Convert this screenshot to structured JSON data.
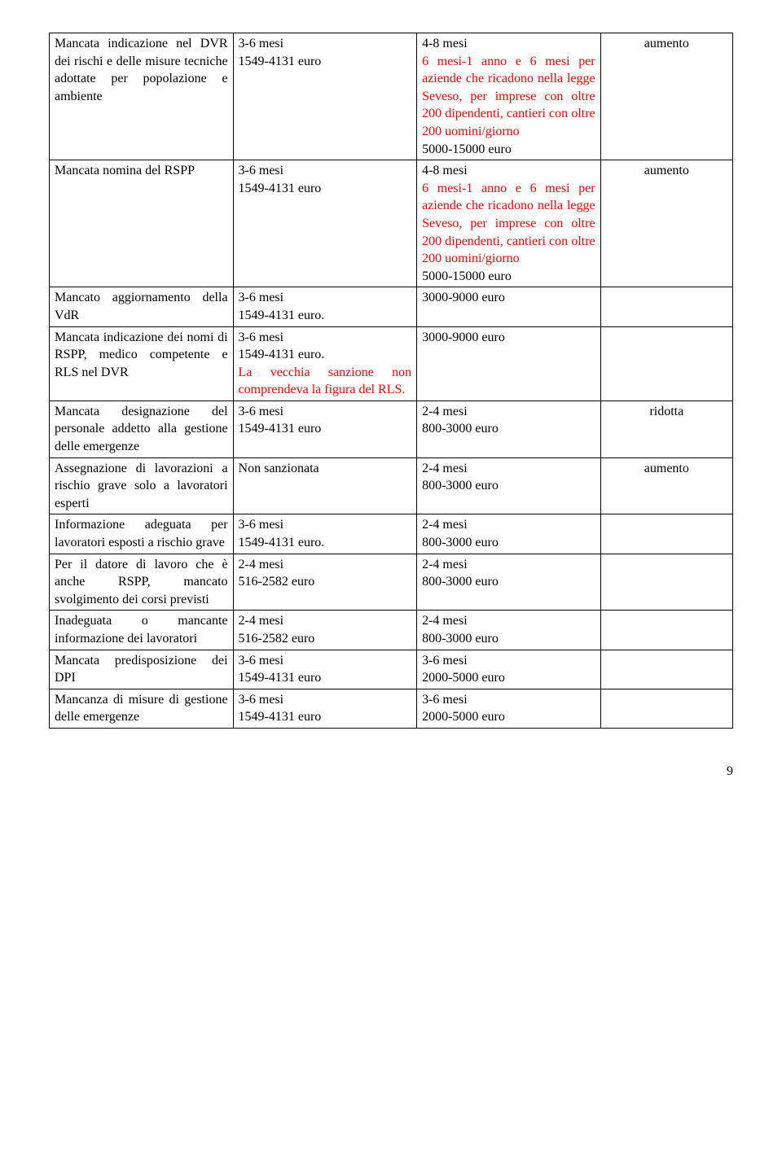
{
  "rows": [
    {
      "c1": [
        {
          "t": "Mancata indicazione nel DVR dei rischi e delle misure tecniche adottate per popolazione e ambiente",
          "red": false
        }
      ],
      "c2": [
        {
          "t": "3-6 mesi",
          "red": false
        },
        {
          "t": "1549-4131 euro",
          "red": false
        }
      ],
      "c3": [
        {
          "t": "4-8 mesi",
          "red": false
        },
        {
          "t": "6 mesi-1 anno e 6 mesi per aziende che ricadono nella legge Seveso, per imprese con oltre 200 dipendenti, cantieri con oltre 200 uomini/giorno",
          "red": true
        },
        {
          "t": "5000-15000 euro",
          "red": false
        }
      ],
      "c4": "aumento"
    },
    {
      "c1": [
        {
          "t": "Mancata nomina del RSPP",
          "red": false
        }
      ],
      "c2": [
        {
          "t": "3-6 mesi",
          "red": false
        },
        {
          "t": "1549-4131 euro",
          "red": false
        }
      ],
      "c3": [
        {
          "t": "4-8 mesi",
          "red": false
        },
        {
          "t": "6 mesi-1 anno e 6 mesi per aziende che ricadono nella legge Seveso, per imprese con oltre 200 dipendenti, cantieri con oltre 200 uomini/giorno",
          "red": true
        },
        {
          "t": "5000-15000 euro",
          "red": false
        }
      ],
      "c4": "aumento"
    },
    {
      "c1": [
        {
          "t": "Mancato aggiornamento della VdR",
          "red": false
        }
      ],
      "c2": [
        {
          "t": "3-6 mesi",
          "red": false
        },
        {
          "t": "1549-4131 euro.",
          "red": false
        }
      ],
      "c3": [
        {
          "t": "3000-9000 euro",
          "red": false
        }
      ],
      "c4": ""
    },
    {
      "c1": [
        {
          "t": "Mancata indicazione dei nomi di RSPP, medico competente e RLS nel DVR",
          "red": false
        }
      ],
      "c2": [
        {
          "t": "3-6 mesi",
          "red": false
        },
        {
          "t": "1549-4131 euro.",
          "red": false
        },
        {
          "t": "La vecchia sanzione non comprendeva la figura del RLS.",
          "red": true
        }
      ],
      "c3": [
        {
          "t": "3000-9000 euro",
          "red": false
        }
      ],
      "c4": ""
    },
    {
      "c1": [
        {
          "t": "Mancata designazione del personale addetto alla gestione delle emergenze",
          "red": false
        }
      ],
      "c2": [
        {
          "t": "3-6 mesi",
          "red": false
        },
        {
          "t": "1549-4131 euro",
          "red": false
        }
      ],
      "c3": [
        {
          "t": "2-4 mesi",
          "red": false
        },
        {
          "t": "800-3000 euro",
          "red": false
        }
      ],
      "c4": "ridotta"
    },
    {
      "c1": [
        {
          "t": "Assegnazione di lavorazioni a rischio grave solo a lavoratori esperti",
          "red": false
        }
      ],
      "c2": [
        {
          "t": "Non sanzionata",
          "red": false
        }
      ],
      "c3": [
        {
          "t": "2-4 mesi",
          "red": false
        },
        {
          "t": "800-3000 euro",
          "red": false
        }
      ],
      "c4": "aumento"
    },
    {
      "c1": [
        {
          "t": "Informazione adeguata per lavoratori esposti a rischio grave",
          "red": false
        }
      ],
      "c2": [
        {
          "t": "3-6 mesi",
          "red": false
        },
        {
          "t": "1549-4131 euro.",
          "red": false
        }
      ],
      "c3": [
        {
          "t": "2-4 mesi",
          "red": false
        },
        {
          "t": "800-3000 euro",
          "red": false
        }
      ],
      "c4": ""
    },
    {
      "c1": [
        {
          "t": "Per il datore di lavoro che è anche RSPP, mancato svolgimento dei corsi previsti",
          "red": false
        }
      ],
      "c2": [
        {
          "t": "2-4 mesi",
          "red": false
        },
        {
          "t": "516-2582 euro",
          "red": false
        }
      ],
      "c3": [
        {
          "t": "2-4 mesi",
          "red": false
        },
        {
          "t": "800-3000 euro",
          "red": false
        }
      ],
      "c4": ""
    },
    {
      "c1": [
        {
          "t": "Inadeguata o mancante informazione dei lavoratori",
          "red": false
        }
      ],
      "c2": [
        {
          "t": "2-4 mesi",
          "red": false
        },
        {
          "t": "516-2582 euro",
          "red": false
        }
      ],
      "c3": [
        {
          "t": "2-4 mesi",
          "red": false
        },
        {
          "t": "800-3000 euro",
          "red": false
        }
      ],
      "c4": ""
    },
    {
      "c1": [
        {
          "t": "Mancata predisposizione dei DPI",
          "red": false
        }
      ],
      "c2": [
        {
          "t": "3-6 mesi",
          "red": false
        },
        {
          "t": "1549-4131 euro",
          "red": false
        }
      ],
      "c3": [
        {
          "t": "3-6 mesi",
          "red": false
        },
        {
          "t": "2000-5000 euro",
          "red": false
        }
      ],
      "c4": ""
    },
    {
      "c1": [
        {
          "t": "Mancanza di misure di gestione delle emergenze",
          "red": false
        }
      ],
      "c2": [
        {
          "t": "3-6 mesi",
          "red": false
        },
        {
          "t": "1549-4131 euro",
          "red": false
        }
      ],
      "c3": [
        {
          "t": "3-6 mesi",
          "red": false
        },
        {
          "t": "2000-5000 euro",
          "red": false
        }
      ],
      "c4": ""
    }
  ],
  "pageNumber": "9"
}
